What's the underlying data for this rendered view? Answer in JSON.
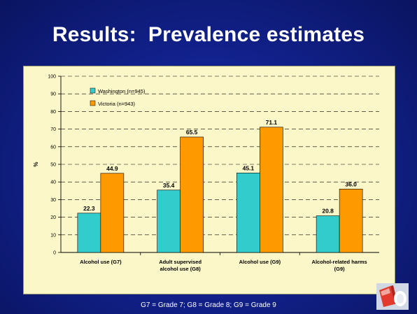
{
  "slide": {
    "title": "Results:  Prevalence estimates",
    "footer": "G7 = Grade 7; G8 = Grade 8; G9 = Grade 9"
  },
  "colors": {
    "washington": "#33cccc",
    "victoria": "#ff9900",
    "panel": "#fcf7c8"
  },
  "chart_data": {
    "type": "bar",
    "ylabel": "%",
    "xlabel": "",
    "ylim": [
      0,
      100
    ],
    "yticks": [
      0,
      10,
      20,
      30,
      40,
      50,
      60,
      70,
      80,
      90,
      100
    ],
    "grid": "horizontal dashed",
    "legend_position": "top-left",
    "categories": [
      [
        "Alcohol use (G7)"
      ],
      [
        "Adult supervised",
        "alcohol use (G8)"
      ],
      [
        "Alcohol use (G9)"
      ],
      [
        "Alcohol-related harms",
        "(G9)"
      ]
    ],
    "series": [
      {
        "name": "Washington (n=945)",
        "values": [
          22.3,
          35.4,
          45.1,
          20.8
        ],
        "labels": [
          "22.3",
          "35.4",
          "45.1",
          "20.8"
        ]
      },
      {
        "name": "Victoria (n=943)",
        "values": [
          44.9,
          65.5,
          71.1,
          36.0
        ],
        "labels": [
          "44.9",
          "65.5",
          "71.1",
          "36.0"
        ]
      }
    ]
  }
}
